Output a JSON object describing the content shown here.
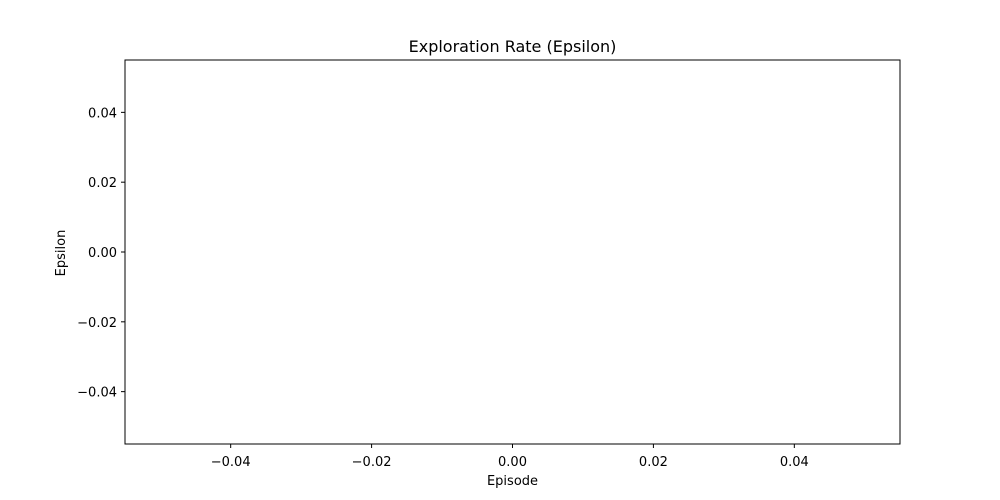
{
  "chart_data": {
    "type": "line",
    "title": "Exploration Rate (Epsilon)",
    "xlabel": "Episode",
    "ylabel": "Epsilon",
    "xlim": [
      -0.055,
      0.055
    ],
    "ylim": [
      -0.055,
      0.055
    ],
    "x_ticks": [
      -0.04,
      -0.02,
      0.0,
      0.02,
      0.04
    ],
    "x_tick_labels": [
      "−0.04",
      "−0.02",
      "0.00",
      "0.02",
      "0.04"
    ],
    "y_ticks": [
      0.04,
      0.02,
      0.0,
      -0.02,
      -0.04
    ],
    "y_tick_labels": [
      "0.04",
      "0.02",
      "0.00",
      "−0.02",
      "−0.04"
    ],
    "grid": false,
    "series": [
      {
        "x": [],
        "y": []
      }
    ]
  }
}
